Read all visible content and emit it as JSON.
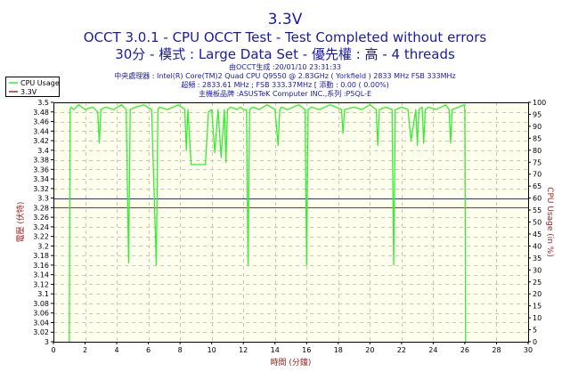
{
  "chart_data": {
    "type": "line",
    "title": "3.3V",
    "subtitle": "OCCT 3.0.1 - CPU OCCT Test - Test Completed without errors",
    "subtitle2": "30分 - 模式 : Large Data Set - 優先權 : 高 - 4 threads",
    "info_lines": [
      "由OCCT生成 :20/01/10 23:31:33",
      "中央處理器 : Intel(R) Core(TM)2 Quad CPU Q9550 @ 2.83GHz ( Yorkfield ) 2833 MHz FSB 333MHz",
      "超頻 : 2833.61 MHz ; FSB 333.37MHz [ 添動 : 0.00 ( 0.00%)",
      "主機板品牌 :ASUSTeK Computer INC.,系列 :P5QL-E"
    ],
    "xlabel": "時間 (分鐘)",
    "ylabel": "電壓 (伏特)",
    "y2label": "CPU Usage (in %)",
    "xlim": [
      0,
      30
    ],
    "ylim": [
      3.0,
      3.5
    ],
    "y2lim": [
      0,
      100
    ],
    "x_ticks": [
      "0",
      "2",
      "4",
      "6",
      "8",
      "10",
      "12",
      "14",
      "16",
      "18",
      "20",
      "22",
      "24",
      "26",
      "28",
      "30"
    ],
    "y_ticks": [
      "3",
      "3.02",
      "3.04",
      "3.06",
      "3.08",
      "3.1",
      "3.12",
      "3.14",
      "3.16",
      "3.18",
      "3.2",
      "3.22",
      "3.24",
      "3.26",
      "3.28",
      "3.3",
      "3.32",
      "3.34",
      "3.36",
      "3.38",
      "3.4",
      "3.42",
      "3.44",
      "3.46",
      "3.48",
      "3.5"
    ],
    "y2_ticks": [
      "0",
      "5",
      "10",
      "15",
      "20",
      "25",
      "30",
      "35",
      "40",
      "45",
      "50",
      "55",
      "60",
      "65",
      "70",
      "75",
      "80",
      "85",
      "90",
      "95",
      "100"
    ],
    "grid": true,
    "legend_position": "top-left",
    "reference_lines": [
      {
        "axis": "y",
        "value": 3.3,
        "color": "#2a2ab0"
      },
      {
        "axis": "y",
        "value": 3.28,
        "color": "#a03030"
      }
    ],
    "series": [
      {
        "name": "CPU Usage",
        "color": "#33ee33",
        "axis": "y2",
        "x": [
          1.0,
          1.05,
          1.1,
          1.3,
          1.6,
          2.0,
          2.5,
          2.8,
          2.9,
          3.0,
          3.3,
          3.8,
          4.3,
          4.6,
          4.75,
          4.85,
          5.2,
          5.7,
          6.2,
          6.5,
          6.6,
          6.7,
          7.2,
          7.9,
          8.3,
          8.4,
          8.5,
          8.7,
          8.8,
          8.9,
          9.0,
          9.1,
          9.2,
          9.3,
          9.6,
          9.8,
          10.0,
          10.2,
          10.4,
          10.6,
          10.8,
          10.9,
          11.0,
          11.2,
          11.6,
          11.8,
          12.0,
          12.2,
          12.3,
          12.4,
          12.6,
          13.0,
          13.5,
          14.0,
          14.2,
          14.3,
          14.4,
          14.8,
          15.5,
          15.9,
          16.0,
          16.1,
          16.3,
          16.8,
          17.5,
          18.2,
          18.3,
          18.4,
          19.0,
          19.5,
          20.0,
          20.4,
          20.5,
          20.6,
          21.0,
          21.4,
          21.5,
          21.6,
          22.0,
          22.4,
          22.6,
          22.9,
          23.0,
          23.1,
          23.3,
          23.4,
          23.5,
          23.7,
          24.2,
          24.8,
          25.0,
          25.1,
          25.2,
          25.6,
          25.95,
          26.0,
          26.05
        ],
        "values": [
          0,
          97,
          98,
          97,
          99,
          97,
          98,
          96,
          83,
          97,
          98,
          97,
          99,
          97,
          33,
          97,
          98,
          99,
          97,
          32,
          97,
          98,
          97,
          99,
          97,
          80,
          97,
          74,
          74,
          74,
          74,
          74,
          74,
          74,
          74,
          96,
          97,
          79,
          97,
          77,
          97,
          75,
          97,
          98,
          97,
          98,
          97,
          97,
          32,
          97,
          98,
          97,
          99,
          97,
          82,
          97,
          98,
          97,
          99,
          97,
          32,
          97,
          98,
          97,
          99,
          97,
          87,
          97,
          98,
          97,
          99,
          97,
          82,
          97,
          98,
          97,
          32,
          97,
          98,
          97,
          84,
          97,
          82,
          97,
          98,
          83,
          97,
          98,
          97,
          99,
          97,
          83,
          97,
          98,
          99,
          97,
          0
        ]
      },
      {
        "name": "3.3V",
        "color": "#a03030",
        "axis": "y",
        "x": [
          0,
          30
        ],
        "values": [
          3.28,
          3.28
        ]
      }
    ]
  }
}
